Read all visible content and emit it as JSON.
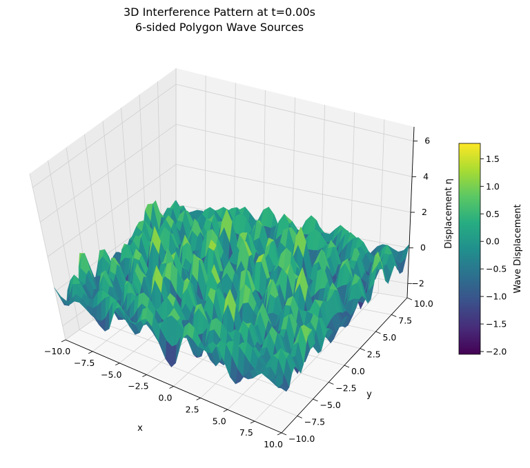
{
  "chart_data": {
    "type": "surface3d",
    "title": "3D Interference Pattern at t=0.00s",
    "subtitle": "6-sided Polygon Wave Sources",
    "xlabel": "x",
    "ylabel": "y",
    "zlabel": "Displacement η",
    "xlim": [
      -10,
      10
    ],
    "ylim": [
      -10,
      10
    ],
    "zlim": [
      -2.8,
      6.8
    ],
    "x_ticks": [
      "−10.0",
      "−7.5",
      "−5.0",
      "−2.5",
      "0.0",
      "2.5",
      "5.0",
      "7.5",
      "10.0"
    ],
    "y_ticks": [
      "−10.0",
      "−7.5",
      "−5.0",
      "−2.5",
      "0.0",
      "2.5",
      "5.0",
      "7.5",
      "10.0"
    ],
    "z_ticks": [
      "−2",
      "0",
      "2",
      "4",
      "6"
    ],
    "colormap": "viridis",
    "colorbar": {
      "label": "Wave Displacement",
      "range": [
        -2.05,
        1.78
      ],
      "ticks": [
        "−2.0",
        "−1.5",
        "−1.0",
        "−0.5",
        "0.0",
        "0.5",
        "1.0",
        "1.5"
      ]
    },
    "sources": 6,
    "grid": true
  }
}
